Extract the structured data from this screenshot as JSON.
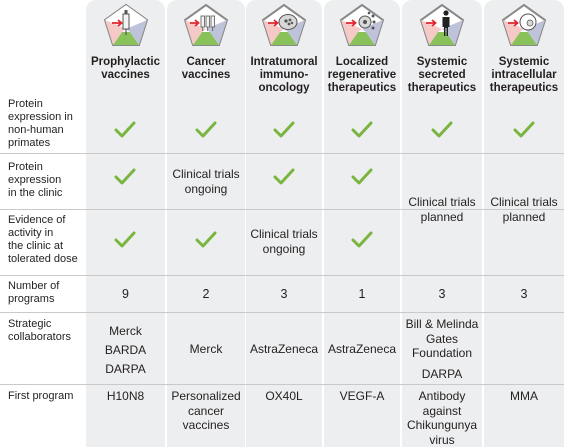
{
  "columns": [
    {
      "id": "prophylactic",
      "title": "Prophylactic vaccines",
      "lines": [
        "Prophylactic",
        "vaccines"
      ],
      "icon": "syringe-icon"
    },
    {
      "id": "cancer",
      "title": "Cancer vaccines",
      "lines": [
        "Cancer",
        "vaccines"
      ],
      "icon": "multi-syringe-icon"
    },
    {
      "id": "intratumoral",
      "title": "Intratumoral immuno-oncology",
      "lines": [
        "Intratumoral",
        "immuno-",
        "oncology"
      ],
      "icon": "tumor-cell-icon"
    },
    {
      "id": "regenerative",
      "title": "Localized regenerative therapeutics",
      "lines": [
        "Localized",
        "regenerative",
        "therapeutics"
      ],
      "icon": "regenerative-cell-icon"
    },
    {
      "id": "secreted",
      "title": "Systemic secreted therapeutics",
      "lines": [
        "Systemic",
        "secreted",
        "therapeutics"
      ],
      "icon": "human-figure-icon"
    },
    {
      "id": "intracellular",
      "title": "Systemic intracellular therapeutics",
      "lines": [
        "Systemic",
        "intracellular",
        "therapeutics"
      ],
      "icon": "intracellular-cell-icon"
    }
  ],
  "rows": {
    "nhp": {
      "label": [
        "Protein",
        "expression in",
        "non-human",
        "primates"
      ]
    },
    "clinic": {
      "label": [
        "Protein",
        "expression",
        "in the clinic"
      ]
    },
    "activity": {
      "label": [
        "Evidence of",
        "activity in",
        "the clinic at",
        "tolerated dose"
      ]
    },
    "programs": {
      "label": [
        "Number of",
        "programs"
      ],
      "values": [
        "9",
        "2",
        "3",
        "1",
        "3",
        "3"
      ]
    },
    "collaborators": {
      "label": [
        "Strategic",
        "collaborators"
      ]
    },
    "first": {
      "label": [
        "First program"
      ]
    }
  },
  "status": {
    "ongoing": [
      "Clinical trials",
      "ongoing"
    ],
    "planned": [
      "Clinical trials",
      "planned"
    ]
  },
  "collaborators": {
    "prophylactic": [
      "Merck",
      "BARDA",
      "DARPA"
    ],
    "cancer": "Merck",
    "intratumoral": "AstraZeneca",
    "regenerative": "AstraZeneca",
    "secreted_a": [
      "Bill & Melinda",
      "Gates",
      "Foundation"
    ],
    "secreted_b": "DARPA"
  },
  "first_program": {
    "prophylactic": "H10N8",
    "cancer": [
      "Personalized",
      "cancer",
      "vaccines"
    ],
    "intratumoral": "OX40L",
    "regenerative": "VEGF-A",
    "secreted": [
      "Antibody",
      "against",
      "Chikungunya",
      "virus"
    ],
    "intracellular": "MMA"
  },
  "colors": {
    "check": "#7ab540",
    "column_bg": "#edeeef",
    "arrow": "#e0262e",
    "pentagon_border": "#8a8a8a"
  }
}
